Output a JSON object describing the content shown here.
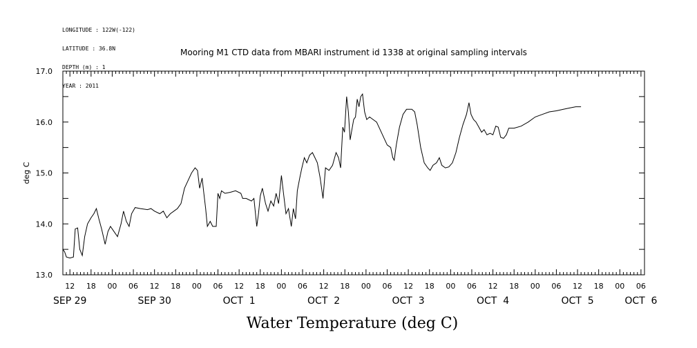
{
  "header": {
    "longitude": "LONGITUDE : 122W(-122)",
    "latitude": "LATITUDE : 36.8N",
    "depth": "DEPTH (m) : 1",
    "year": "YEAR : 2011"
  },
  "chart_data": {
    "type": "line",
    "title": "Mooring M1 CTD data from MBARI instrument id 1338 at original sampling intervals",
    "xlabel": "Water Temperature (deg C)",
    "ylabel": "deg C",
    "ylim": [
      13.0,
      17.0
    ],
    "xlim_hours": [
      0,
      165
    ],
    "y_ticks": [
      "13.0",
      "14.0",
      "15.0",
      "16.0",
      "17.0"
    ],
    "hour_ticks": [
      {
        "h": 2,
        "label": "12"
      },
      {
        "h": 8,
        "label": "18"
      },
      {
        "h": 14,
        "label": "00"
      },
      {
        "h": 20,
        "label": "06"
      },
      {
        "h": 26,
        "label": "12"
      },
      {
        "h": 32,
        "label": "18"
      },
      {
        "h": 38,
        "label": "00"
      },
      {
        "h": 44,
        "label": "06"
      },
      {
        "h": 50,
        "label": "12"
      },
      {
        "h": 56,
        "label": "18"
      },
      {
        "h": 62,
        "label": "00"
      },
      {
        "h": 68,
        "label": "06"
      },
      {
        "h": 74,
        "label": "12"
      },
      {
        "h": 80,
        "label": "18"
      },
      {
        "h": 86,
        "label": "00"
      },
      {
        "h": 92,
        "label": "06"
      },
      {
        "h": 98,
        "label": "12"
      },
      {
        "h": 104,
        "label": "18"
      },
      {
        "h": 110,
        "label": "00"
      },
      {
        "h": 116,
        "label": "06"
      },
      {
        "h": 122,
        "label": "12"
      },
      {
        "h": 128,
        "label": "18"
      },
      {
        "h": 134,
        "label": "00"
      },
      {
        "h": 140,
        "label": "06"
      },
      {
        "h": 146,
        "label": "12"
      },
      {
        "h": 152,
        "label": "18"
      },
      {
        "h": 158,
        "label": "00"
      },
      {
        "h": 164,
        "label": "06"
      }
    ],
    "day_labels": [
      {
        "h": 2,
        "label": "SEP 29"
      },
      {
        "h": 26,
        "label": "SEP 30"
      },
      {
        "h": 50,
        "label": "OCT  1"
      },
      {
        "h": 74,
        "label": "OCT  2"
      },
      {
        "h": 98,
        "label": "OCT  3"
      },
      {
        "h": 122,
        "label": "OCT  4"
      },
      {
        "h": 146,
        "label": "OCT  5"
      },
      {
        "h": 164,
        "label": "OCT  6"
      }
    ],
    "series": [
      {
        "line_color": "#000000",
        "points": [
          [
            0,
            13.5
          ],
          [
            0.5,
            13.45
          ],
          [
            1,
            13.35
          ],
          [
            2,
            13.33
          ],
          [
            3,
            13.35
          ],
          [
            3.5,
            13.9
          ],
          [
            4.2,
            13.92
          ],
          [
            4.8,
            13.5
          ],
          [
            5.5,
            13.38
          ],
          [
            6.2,
            13.75
          ],
          [
            7,
            14.0
          ],
          [
            8,
            14.12
          ],
          [
            8.8,
            14.2
          ],
          [
            9.5,
            14.3
          ],
          [
            10.2,
            14.1
          ],
          [
            11,
            13.9
          ],
          [
            12,
            13.6
          ],
          [
            12.8,
            13.85
          ],
          [
            13.5,
            13.95
          ],
          [
            14.5,
            13.85
          ],
          [
            15.5,
            13.75
          ],
          [
            16.5,
            14.0
          ],
          [
            17.2,
            14.25
          ],
          [
            18,
            14.05
          ],
          [
            18.8,
            13.95
          ],
          [
            19.5,
            14.2
          ],
          [
            20.5,
            14.32
          ],
          [
            22,
            14.3
          ],
          [
            24,
            14.28
          ],
          [
            25,
            14.3
          ],
          [
            26,
            14.25
          ],
          [
            27.5,
            14.2
          ],
          [
            28.5,
            14.25
          ],
          [
            29.5,
            14.12
          ],
          [
            30.5,
            14.2
          ],
          [
            31.5,
            14.25
          ],
          [
            32.5,
            14.3
          ],
          [
            33.5,
            14.4
          ],
          [
            34.5,
            14.7
          ],
          [
            35.5,
            14.85
          ],
          [
            36.5,
            15.0
          ],
          [
            37.5,
            15.1
          ],
          [
            38.2,
            15.05
          ],
          [
            38.8,
            14.7
          ],
          [
            39.5,
            14.9
          ],
          [
            40,
            14.6
          ],
          [
            40.5,
            14.3
          ],
          [
            41,
            13.95
          ],
          [
            41.8,
            14.05
          ],
          [
            42.5,
            13.95
          ],
          [
            43.5,
            13.95
          ],
          [
            44,
            14.6
          ],
          [
            44.5,
            14.5
          ],
          [
            45,
            14.65
          ],
          [
            46,
            14.6
          ],
          [
            47.5,
            14.62
          ],
          [
            49,
            14.65
          ],
          [
            50.5,
            14.6
          ],
          [
            51,
            14.5
          ],
          [
            52,
            14.5
          ],
          [
            53.5,
            14.45
          ],
          [
            54.2,
            14.5
          ],
          [
            55,
            13.95
          ],
          [
            55.5,
            14.2
          ],
          [
            56,
            14.55
          ],
          [
            56.6,
            14.7
          ],
          [
            57.5,
            14.4
          ],
          [
            58.2,
            14.25
          ],
          [
            59,
            14.45
          ],
          [
            59.8,
            14.35
          ],
          [
            60.5,
            14.6
          ],
          [
            61.2,
            14.4
          ],
          [
            62,
            14.95
          ],
          [
            62.6,
            14.6
          ],
          [
            63.3,
            14.2
          ],
          [
            64,
            14.3
          ],
          [
            64.8,
            13.95
          ],
          [
            65.4,
            14.3
          ],
          [
            66,
            14.1
          ],
          [
            66.5,
            14.65
          ],
          [
            67.2,
            14.9
          ],
          [
            67.8,
            15.1
          ],
          [
            68.5,
            15.3
          ],
          [
            69.2,
            15.2
          ],
          [
            70,
            15.35
          ],
          [
            70.8,
            15.4
          ],
          [
            71.5,
            15.3
          ],
          [
            72.2,
            15.2
          ],
          [
            73,
            14.9
          ],
          [
            73.8,
            14.5
          ],
          [
            74.5,
            15.1
          ],
          [
            75.5,
            15.05
          ],
          [
            76.5,
            15.15
          ],
          [
            77.5,
            15.4
          ],
          [
            78.2,
            15.3
          ],
          [
            78.8,
            15.1
          ],
          [
            79.4,
            15.9
          ],
          [
            79.9,
            15.8
          ],
          [
            80.5,
            16.5
          ],
          [
            81,
            16.2
          ],
          [
            81.5,
            15.65
          ],
          [
            82,
            15.85
          ],
          [
            82.5,
            16.05
          ],
          [
            83,
            16.1
          ],
          [
            83.5,
            16.45
          ],
          [
            84,
            16.3
          ],
          [
            84.5,
            16.5
          ],
          [
            85,
            16.55
          ],
          [
            85.6,
            16.2
          ],
          [
            86.2,
            16.05
          ],
          [
            87,
            16.1
          ],
          [
            88,
            16.05
          ],
          [
            89,
            16.0
          ],
          [
            90,
            15.85
          ],
          [
            91,
            15.7
          ],
          [
            92,
            15.55
          ],
          [
            93,
            15.5
          ],
          [
            93.6,
            15.3
          ],
          [
            94,
            15.25
          ],
          [
            94.6,
            15.55
          ],
          [
            95.5,
            15.9
          ],
          [
            96.5,
            16.15
          ],
          [
            97.5,
            16.25
          ],
          [
            99,
            16.25
          ],
          [
            99.8,
            16.2
          ],
          [
            100.5,
            15.95
          ],
          [
            101.5,
            15.5
          ],
          [
            102.5,
            15.2
          ],
          [
            103.5,
            15.1
          ],
          [
            104.2,
            15.05
          ],
          [
            105,
            15.15
          ],
          [
            106,
            15.2
          ],
          [
            106.8,
            15.3
          ],
          [
            107.5,
            15.15
          ],
          [
            108.5,
            15.1
          ],
          [
            109.5,
            15.12
          ],
          [
            110.5,
            15.2
          ],
          [
            111.5,
            15.4
          ],
          [
            112.5,
            15.7
          ],
          [
            113.5,
            15.95
          ],
          [
            114.5,
            16.15
          ],
          [
            115.2,
            16.38
          ],
          [
            115.8,
            16.15
          ],
          [
            116.5,
            16.05
          ],
          [
            117.2,
            16.0
          ],
          [
            118,
            15.9
          ],
          [
            118.8,
            15.8
          ],
          [
            119.5,
            15.85
          ],
          [
            120.3,
            15.75
          ],
          [
            121.2,
            15.78
          ],
          [
            122,
            15.75
          ],
          [
            122.8,
            15.92
          ],
          [
            123.5,
            15.9
          ],
          [
            124.2,
            15.7
          ],
          [
            125,
            15.68
          ],
          [
            125.8,
            15.75
          ],
          [
            126.5,
            15.88
          ],
          [
            128,
            15.88
          ],
          [
            130,
            15.92
          ],
          [
            132,
            16.0
          ],
          [
            134,
            16.1
          ],
          [
            136,
            16.15
          ],
          [
            138,
            16.2
          ],
          [
            140,
            16.22
          ],
          [
            142,
            16.25
          ],
          [
            144,
            16.28
          ],
          [
            145.5,
            16.3
          ],
          [
            147,
            16.3
          ]
        ]
      }
    ]
  }
}
